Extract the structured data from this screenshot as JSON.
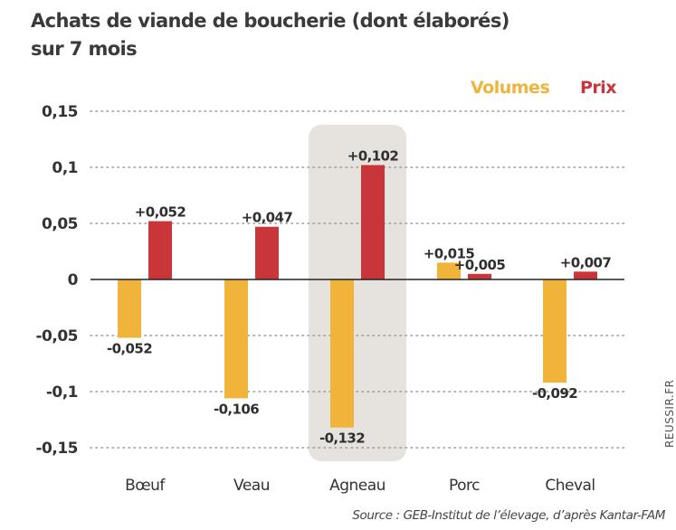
{
  "chart_data": {
    "type": "bar",
    "title": "Achats de viande de boucherie (dont élaborés)",
    "subtitle": "sur 7 mois",
    "xlabel": "",
    "ylabel": "",
    "ylim": [
      -0.15,
      0.15
    ],
    "yticks": [
      0.15,
      0.1,
      0.05,
      0,
      -0.05,
      -0.1,
      -0.15
    ],
    "ytick_labels": [
      "0,15",
      "0,1",
      "0,05",
      "0",
      "-0,05",
      "-0,1",
      "-0,15"
    ],
    "grid": "horizontal-dotted",
    "legend_position": "top-right",
    "categories": [
      "Bœuf",
      "Veau",
      "Agneau",
      "Porc",
      "Cheval"
    ],
    "highlighted_category": "Agneau",
    "series": [
      {
        "name": "Volumes",
        "color": "#f0b43a",
        "values": [
          -0.052,
          -0.106,
          -0.132,
          0.015,
          -0.092
        ],
        "labels": [
          "-0,052",
          "-0,106",
          "-0,132",
          "+0,015",
          "-0,092"
        ]
      },
      {
        "name": "Prix",
        "color": "#c8363a",
        "values": [
          0.052,
          0.047,
          0.102,
          0.005,
          0.007
        ],
        "labels": [
          "+0,052",
          "+0,047",
          "+0,102",
          "+0,005",
          "+0,007"
        ]
      }
    ],
    "source": "Source : GEB-Institut de l’élevage, d’après Kantar-FAM",
    "watermark": "REUSSIR.FR"
  }
}
